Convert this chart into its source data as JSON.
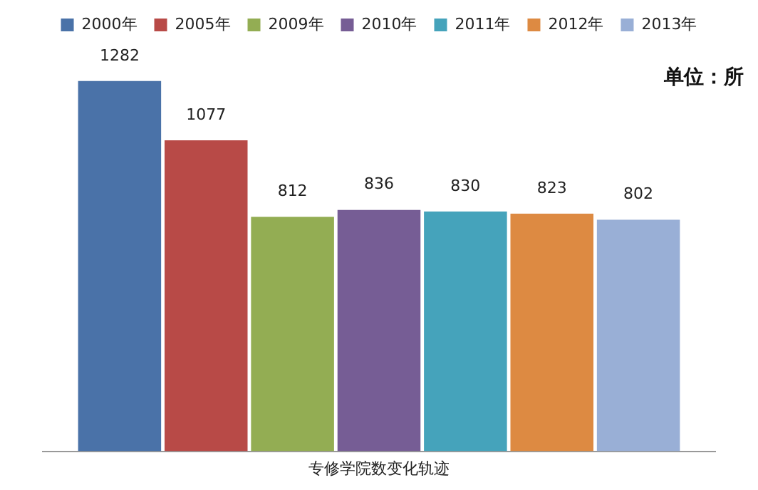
{
  "chart_data": {
    "type": "bar",
    "categories": [
      null
    ],
    "xlabel": "专修学院数变化轨迹",
    "annotations": [
      "单位：所"
    ],
    "data_labels": true,
    "legend": "top",
    "grid": false,
    "tick_labels": false,
    "series": [
      {
        "name": "2000年",
        "color": "#4a72a8",
        "values": [
          1282
        ]
      },
      {
        "name": "2005年",
        "color": "#b84a47",
        "values": [
          1077
        ]
      },
      {
        "name": "2009年",
        "color": "#93ad53",
        "values": [
          812
        ]
      },
      {
        "name": "2010年",
        "color": "#765d95",
        "values": [
          836
        ]
      },
      {
        "name": "2011年",
        "color": "#45a3bb",
        "values": [
          830
        ]
      },
      {
        "name": "2012年",
        "color": "#dd8a42",
        "values": [
          823
        ]
      },
      {
        "name": "2013年",
        "color": "#99afd6",
        "values": [
          802
        ]
      }
    ]
  }
}
